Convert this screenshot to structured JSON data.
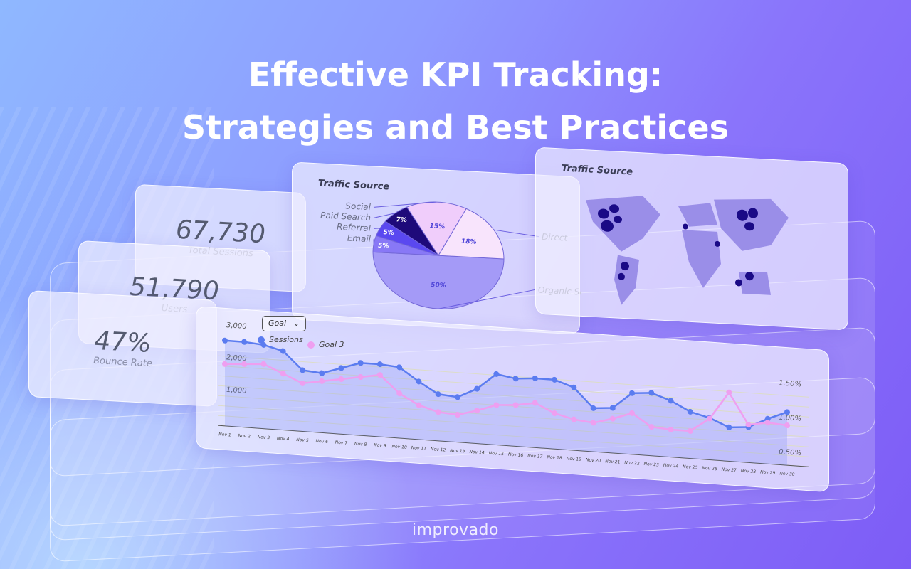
{
  "header": {
    "title_line1": "Effective KPI Tracking:",
    "title_line2": "Strategies and Best Practices"
  },
  "kpis": [
    {
      "value": "67,730",
      "label": "Total Sessions"
    },
    {
      "value": "51,790",
      "label": "Users"
    },
    {
      "value": "47%",
      "label": "Bounce Rate"
    }
  ],
  "pie_card": {
    "title": "Traffic Source"
  },
  "map_card": {
    "title": "Traffic Source"
  },
  "line_card": {
    "dropdown": "Goal",
    "legend": [
      "Sessions",
      "Goal 3"
    ]
  },
  "brand": "improvado",
  "colors": {
    "sessions": "#5b7cf0",
    "goal3": "#ee9ff0",
    "pie_organic": "#a49af7",
    "pie_direct": "#f8e4fc",
    "pie_social": "#f0cdfb",
    "pie_paid": "#1e0a7a",
    "pie_referral": "#5a48f0",
    "pie_email": "#8878f6"
  },
  "chart_data": [
    {
      "type": "pie",
      "title": "Traffic Source",
      "slices": [
        {
          "label": "Organic Search",
          "value": 50,
          "text": "50%"
        },
        {
          "label": "Email",
          "value": 5,
          "text": "5%"
        },
        {
          "label": "Referral",
          "value": 5,
          "text": "5%"
        },
        {
          "label": "Paid Search",
          "value": 7,
          "text": "7%"
        },
        {
          "label": "Social",
          "value": 15,
          "text": "15%"
        },
        {
          "label": "Direct",
          "value": 18,
          "text": "18%"
        }
      ]
    },
    {
      "type": "line",
      "categories": [
        "Nov 1",
        "Nov 2",
        "Nov 3",
        "Nov 4",
        "Nov 5",
        "Nov 6",
        "Nov 7",
        "Nov 8",
        "Nov 9",
        "Nov 10",
        "Nov 11",
        "Nov 12",
        "Nov 13",
        "Nov 14",
        "Nov 15",
        "Nov 16",
        "Nov 17",
        "Nov 18",
        "Nov 19",
        "Nov 20",
        "Nov 21",
        "Nov 22",
        "Nov 23",
        "Nov 24",
        "Nov 25",
        "Nov 26",
        "Nov 27",
        "Nov 28",
        "Nov 29",
        "Nov 30"
      ],
      "y_left_ticks": [
        "1,000",
        "2,000",
        "3,000"
      ],
      "ylim_left": [
        0,
        3200
      ],
      "y_right_ticks": [
        "0.50%",
        "1.00%",
        "1.50%"
      ],
      "ylim_right": [
        0.3,
        1.8
      ],
      "series": [
        {
          "name": "Sessions",
          "axis": "left",
          "values": [
            2650,
            2650,
            2600,
            2450,
            1900,
            1850,
            2050,
            2250,
            2250,
            2200,
            1800,
            1450,
            1400,
            1700,
            2200,
            2100,
            2150,
            2150,
            1950,
            1350,
            1400,
            1900,
            1950,
            1750,
            1450,
            1300,
            1050,
            1100,
            1400,
            1650
          ]
        },
        {
          "name": "Goal 3",
          "axis": "right",
          "values": [
            1.2,
            1.22,
            1.24,
            1.12,
            1.0,
            1.05,
            1.1,
            1.15,
            1.2,
            0.95,
            0.8,
            0.72,
            0.7,
            0.78,
            0.88,
            0.9,
            0.95,
            0.82,
            0.75,
            0.72,
            0.8,
            0.9,
            0.72,
            0.7,
            0.7,
            0.9,
            1.3,
            0.85,
            0.9,
            0.88
          ]
        }
      ],
      "grid": true,
      "legend": "top-left"
    }
  ]
}
